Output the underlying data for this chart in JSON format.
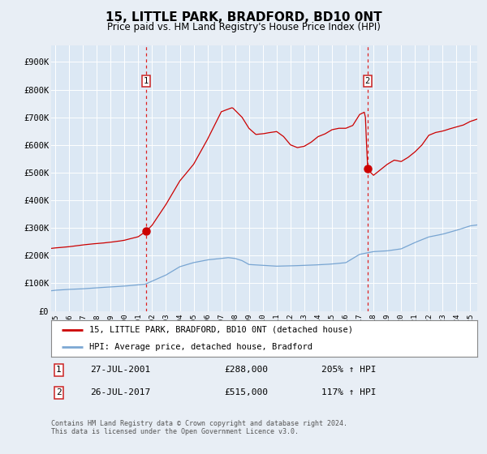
{
  "title": "15, LITTLE PARK, BRADFORD, BD10 0NT",
  "subtitle": "Price paid vs. HM Land Registry's House Price Index (HPI)",
  "title_fontsize": 11,
  "subtitle_fontsize": 9,
  "background_color": "#e8eef5",
  "plot_bg_color": "#dce8f4",
  "grid_color": "#c8d8e8",
  "ylabel_ticks": [
    "£0",
    "£100K",
    "£200K",
    "£300K",
    "£400K",
    "£500K",
    "£600K",
    "£700K",
    "£800K",
    "£900K"
  ],
  "ytick_values": [
    0,
    100000,
    200000,
    300000,
    400000,
    500000,
    600000,
    700000,
    800000,
    900000
  ],
  "ylim": [
    0,
    960000
  ],
  "xlim_start": 1994.7,
  "xlim_end": 2025.5,
  "xtick_years": [
    1995,
    1996,
    1997,
    1998,
    1999,
    2000,
    2001,
    2002,
    2003,
    2004,
    2005,
    2006,
    2007,
    2008,
    2009,
    2010,
    2011,
    2012,
    2013,
    2014,
    2015,
    2016,
    2017,
    2018,
    2019,
    2020,
    2021,
    2022,
    2023,
    2024,
    2025
  ],
  "sale1_x": 2001.57,
  "sale1_y": 288000,
  "sale1_label": "1",
  "sale2_x": 2017.57,
  "sale2_y": 515000,
  "sale2_label": "2",
  "red_line_color": "#cc0000",
  "blue_line_color": "#6699cc",
  "marker_color": "#cc0000",
  "vline_color": "#dd2222",
  "legend_red_label": "15, LITTLE PARK, BRADFORD, BD10 0NT (detached house)",
  "legend_blue_label": "HPI: Average price, detached house, Bradford",
  "footer": "Contains HM Land Registry data © Crown copyright and database right 2024.\nThis data is licensed under the Open Government Licence v3.0.",
  "table_row1": [
    "27-JUL-2001",
    "£288,000",
    "205% ↑ HPI"
  ],
  "table_row2": [
    "26-JUL-2017",
    "£515,000",
    "117% ↑ HPI"
  ]
}
